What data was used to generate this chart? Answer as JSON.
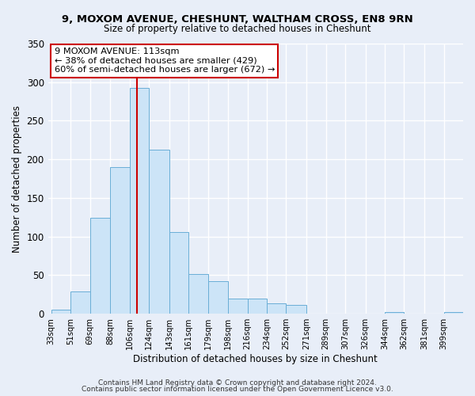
{
  "title": "9, MOXOM AVENUE, CHESHUNT, WALTHAM CROSS, EN8 9RN",
  "subtitle": "Size of property relative to detached houses in Cheshunt",
  "xlabel": "Distribution of detached houses by size in Cheshunt",
  "ylabel": "Number of detached properties",
  "bin_labels": [
    "33sqm",
    "51sqm",
    "69sqm",
    "88sqm",
    "106sqm",
    "124sqm",
    "143sqm",
    "161sqm",
    "179sqm",
    "198sqm",
    "216sqm",
    "234sqm",
    "252sqm",
    "271sqm",
    "289sqm",
    "307sqm",
    "326sqm",
    "344sqm",
    "362sqm",
    "381sqm",
    "399sqm"
  ],
  "bar_heights": [
    5,
    29,
    124,
    190,
    293,
    213,
    106,
    51,
    42,
    20,
    20,
    14,
    11,
    0,
    0,
    0,
    0,
    2,
    0,
    0,
    2
  ],
  "bar_color": "#cce4f7",
  "bar_edgecolor": "#6aaed6",
  "vline_x": 113,
  "vline_color": "#cc0000",
  "ylim": [
    0,
    350
  ],
  "yticks": [
    0,
    50,
    100,
    150,
    200,
    250,
    300,
    350
  ],
  "annotation_text": "9 MOXOM AVENUE: 113sqm\n← 38% of detached houses are smaller (429)\n60% of semi-detached houses are larger (672) →",
  "annotation_box_facecolor": "#ffffff",
  "annotation_box_edgecolor": "#cc0000",
  "footer1": "Contains HM Land Registry data © Crown copyright and database right 2024.",
  "footer2": "Contains public sector information licensed under the Open Government Licence v3.0.",
  "bin_edges": [
    33,
    51,
    69,
    88,
    106,
    124,
    143,
    161,
    179,
    198,
    216,
    234,
    252,
    271,
    289,
    307,
    326,
    344,
    362,
    381,
    399
  ],
  "bg_color": "#e8eef8",
  "grid_color": "#ffffff",
  "title_fontsize": 9.5,
  "subtitle_fontsize": 8.5
}
